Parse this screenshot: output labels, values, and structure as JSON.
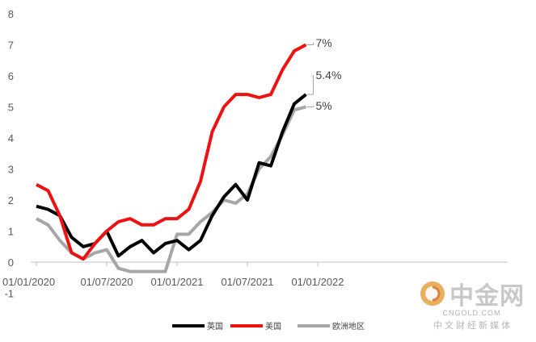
{
  "chart_data": {
    "type": "line",
    "ylim": [
      -1,
      8
    ],
    "y_ticks": [
      -1,
      0,
      1,
      2,
      3,
      4,
      5,
      6,
      7,
      8
    ],
    "x_ticks": [
      "01/01/2020",
      "01/07/2020",
      "01/01/2021",
      "01/07/2021",
      "01/01/2022"
    ],
    "grid": false,
    "legend_position": "bottom",
    "x": [
      "2020-01",
      "2020-02",
      "2020-03",
      "2020-04",
      "2020-05",
      "2020-06",
      "2020-07",
      "2020-08",
      "2020-09",
      "2020-10",
      "2020-11",
      "2020-12",
      "2021-01",
      "2021-02",
      "2021-03",
      "2021-04",
      "2021-05",
      "2021-06",
      "2021-07",
      "2021-08",
      "2021-09",
      "2021-10",
      "2021-11",
      "2021-12",
      "2022-01"
    ],
    "series": [
      {
        "name": "英国",
        "color": "#000000",
        "values": [
          1.8,
          1.7,
          1.5,
          0.8,
          0.5,
          0.6,
          1.0,
          0.2,
          0.5,
          0.7,
          0.3,
          0.6,
          0.7,
          0.4,
          0.7,
          1.5,
          2.1,
          2.5,
          2.0,
          3.2,
          3.1,
          4.2,
          5.1,
          5.4,
          null
        ],
        "end_label": "5.4%"
      },
      {
        "name": "美国",
        "color": "#ee1111",
        "values": [
          2.5,
          2.3,
          1.5,
          0.3,
          0.1,
          0.6,
          1.0,
          1.3,
          1.4,
          1.2,
          1.2,
          1.4,
          1.4,
          1.7,
          2.6,
          4.2,
          5.0,
          5.4,
          5.4,
          5.3,
          5.4,
          6.2,
          6.8,
          7.0,
          null
        ],
        "end_label": "7%"
      },
      {
        "name": "欧洲地区",
        "color": "#a6a6a6",
        "values": [
          1.4,
          1.2,
          0.7,
          0.3,
          0.1,
          0.3,
          0.4,
          -0.2,
          -0.3,
          -0.3,
          -0.3,
          -0.3,
          0.9,
          0.9,
          1.3,
          1.6,
          2.0,
          1.9,
          2.2,
          3.0,
          3.4,
          4.1,
          4.9,
          5.0,
          null
        ],
        "end_label": "5%"
      }
    ]
  },
  "watermark": {
    "brand": "中金网",
    "domain": "CNGOLD.COM",
    "tagline": "中 文 财 经 新 媒 体"
  }
}
